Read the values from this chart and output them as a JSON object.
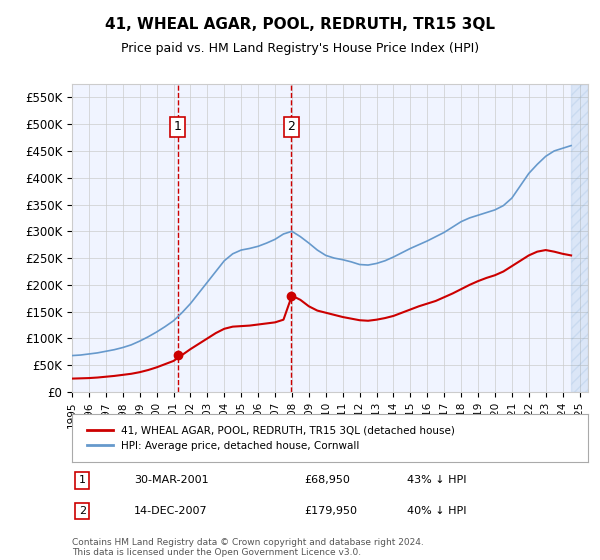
{
  "title": "41, WHEAL AGAR, POOL, REDRUTH, TR15 3QL",
  "subtitle": "Price paid vs. HM Land Registry's House Price Index (HPI)",
  "xlabel": "",
  "ylabel": "",
  "ylim": [
    0,
    575000
  ],
  "yticks": [
    0,
    50000,
    100000,
    150000,
    200000,
    250000,
    300000,
    350000,
    400000,
    450000,
    500000,
    550000
  ],
  "ytick_labels": [
    "£0",
    "£50K",
    "£100K",
    "£150K",
    "£200K",
    "£250K",
    "£300K",
    "£350K",
    "£400K",
    "£450K",
    "£500K",
    "£550K"
  ],
  "xmin": 1995.0,
  "xmax": 2025.5,
  "background_color": "#f0f4ff",
  "plot_background": "#f0f4ff",
  "grid_color": "#cccccc",
  "sale1_x": 2001.24,
  "sale1_y": 68950,
  "sale1_label": "1",
  "sale1_date": "30-MAR-2001",
  "sale1_price": "£68,950",
  "sale1_hpi": "43% ↓ HPI",
  "sale2_x": 2007.96,
  "sale2_y": 179950,
  "sale2_label": "2",
  "sale2_date": "14-DEC-2007",
  "sale2_price": "£179,950",
  "sale2_hpi": "40% ↓ HPI",
  "red_line_color": "#cc0000",
  "blue_line_color": "#6699cc",
  "legend_label_red": "41, WHEAL AGAR, POOL, REDRUTH, TR15 3QL (detached house)",
  "legend_label_blue": "HPI: Average price, detached house, Cornwall",
  "footnote": "Contains HM Land Registry data © Crown copyright and database right 2024.\nThis data is licensed under the Open Government Licence v3.0.",
  "hpi_years": [
    1995,
    1995.5,
    1996,
    1996.5,
    1997,
    1997.5,
    1998,
    1998.5,
    1999,
    1999.5,
    2000,
    2000.5,
    2001,
    2001.5,
    2002,
    2002.5,
    2003,
    2003.5,
    2004,
    2004.5,
    2005,
    2005.5,
    2006,
    2006.5,
    2007,
    2007.5,
    2008,
    2008.5,
    2009,
    2009.5,
    2010,
    2010.5,
    2011,
    2011.5,
    2012,
    2012.5,
    2013,
    2013.5,
    2014,
    2014.5,
    2015,
    2015.5,
    2016,
    2016.5,
    2017,
    2017.5,
    2018,
    2018.5,
    2019,
    2019.5,
    2020,
    2020.5,
    2021,
    2021.5,
    2022,
    2022.5,
    2023,
    2023.5,
    2024,
    2024.5
  ],
  "hpi_values": [
    68000,
    69000,
    71000,
    73000,
    76000,
    79000,
    83000,
    88000,
    95000,
    103000,
    112000,
    122000,
    133000,
    148000,
    165000,
    185000,
    205000,
    225000,
    245000,
    258000,
    265000,
    268000,
    272000,
    278000,
    285000,
    295000,
    300000,
    290000,
    278000,
    265000,
    255000,
    250000,
    247000,
    243000,
    238000,
    237000,
    240000,
    245000,
    252000,
    260000,
    268000,
    275000,
    282000,
    290000,
    298000,
    308000,
    318000,
    325000,
    330000,
    335000,
    340000,
    348000,
    362000,
    385000,
    408000,
    425000,
    440000,
    450000,
    455000,
    460000
  ],
  "red_years": [
    1995,
    1995.5,
    1996,
    1996.5,
    1997,
    1997.5,
    1998,
    1998.5,
    1999,
    1999.5,
    2000,
    2000.5,
    2001,
    2001.5,
    2002,
    2002.5,
    2003,
    2003.5,
    2004,
    2004.5,
    2005,
    2005.5,
    2006,
    2006.5,
    2007,
    2007.5,
    2008,
    2008.5,
    2009,
    2009.5,
    2010,
    2010.5,
    2011,
    2011.5,
    2012,
    2012.5,
    2013,
    2013.5,
    2014,
    2014.5,
    2015,
    2015.5,
    2016,
    2016.5,
    2017,
    2017.5,
    2018,
    2018.5,
    2019,
    2019.5,
    2020,
    2020.5,
    2021,
    2021.5,
    2022,
    2022.5,
    2023,
    2023.5,
    2024,
    2024.5
  ],
  "red_values": [
    25000,
    25500,
    26000,
    27000,
    28500,
    30000,
    32000,
    34000,
    37000,
    41000,
    46000,
    52000,
    58000,
    68950,
    80000,
    90000,
    100000,
    110000,
    118000,
    122000,
    123000,
    124000,
    126000,
    128000,
    130000,
    135000,
    179950,
    172000,
    160000,
    152000,
    148000,
    144000,
    140000,
    137000,
    134000,
    133000,
    135000,
    138000,
    142000,
    148000,
    154000,
    160000,
    165000,
    170000,
    177000,
    184000,
    192000,
    200000,
    207000,
    213000,
    218000,
    225000,
    235000,
    245000,
    255000,
    262000,
    265000,
    262000,
    258000,
    255000
  ]
}
